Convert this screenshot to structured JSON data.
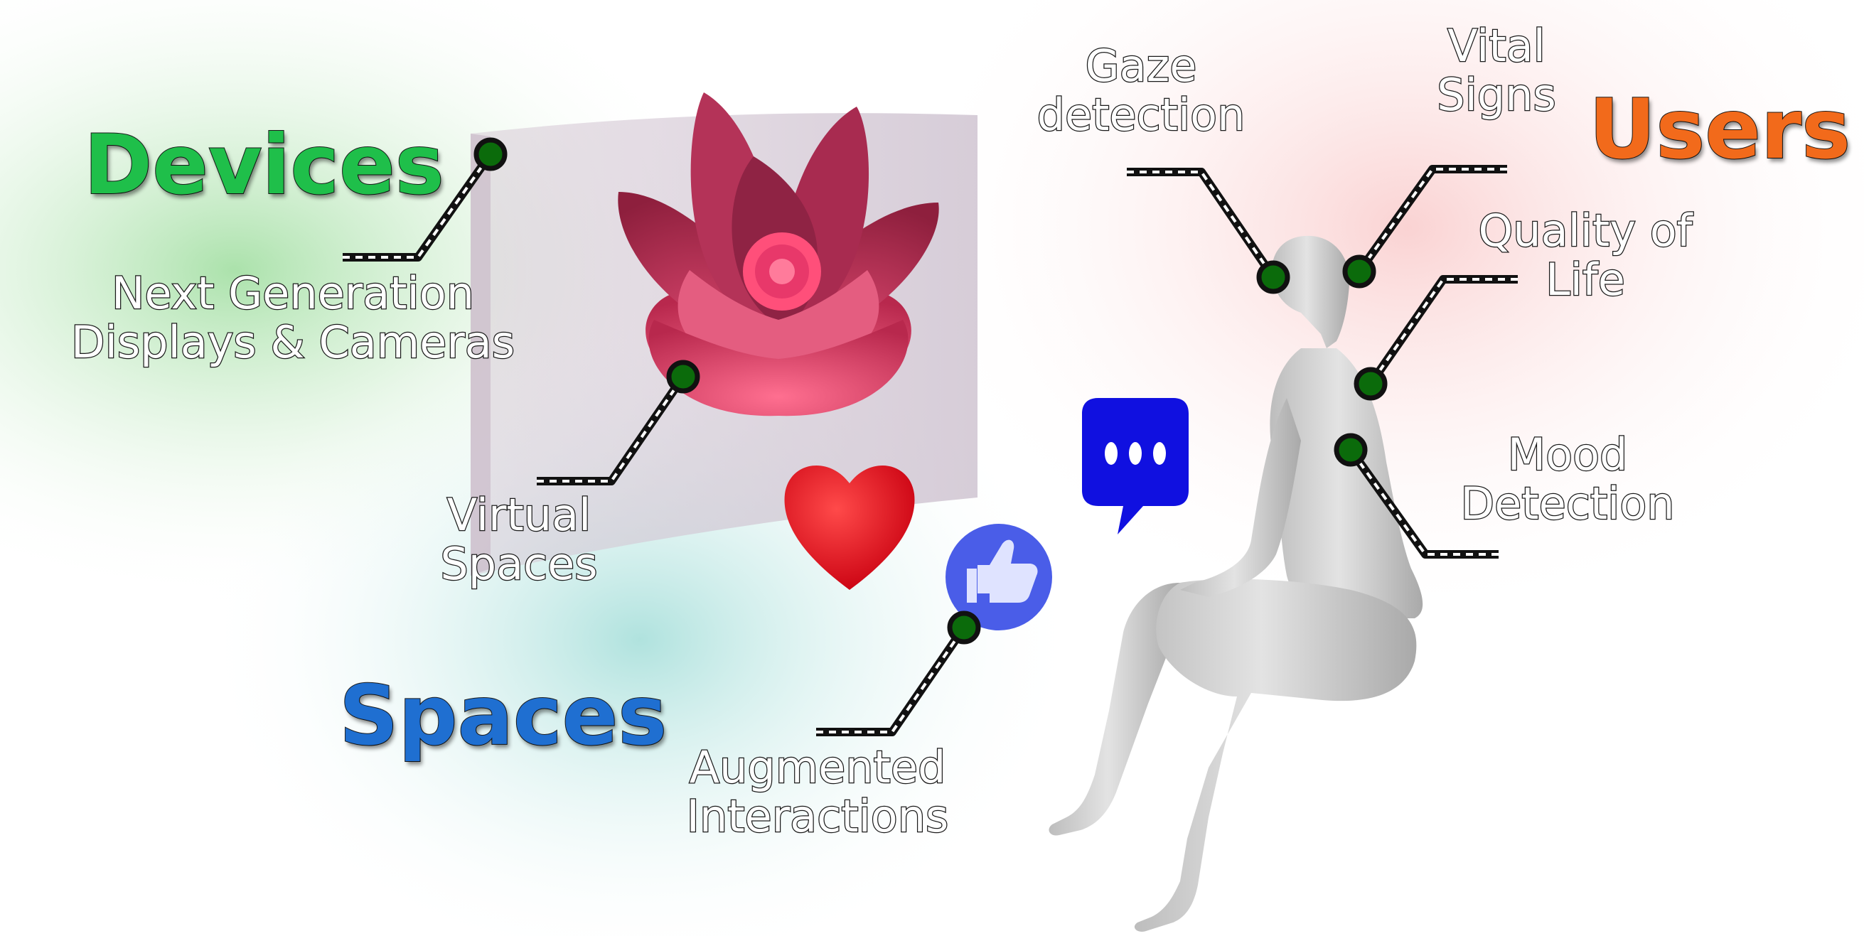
{
  "categories": {
    "devices": {
      "label": "Devices",
      "color": "#1fbf4a"
    },
    "spaces": {
      "label": "Spaces",
      "color": "#1f6fd1"
    },
    "users": {
      "label": "Users",
      "color": "#f26a1b"
    }
  },
  "labels": {
    "displays": {
      "line1": "Next Generation",
      "line2": "Displays & Cameras"
    },
    "virtual": {
      "line1": "Virtual",
      "line2": "Spaces"
    },
    "augmented": {
      "line1": "Augmented",
      "line2": "Interactions"
    },
    "gaze": {
      "line1": "Gaze",
      "line2": "detection"
    },
    "vital": {
      "line1": "Vital",
      "line2": "Signs"
    },
    "quality": {
      "line1": "Quality of",
      "line2": "Life"
    },
    "mood": {
      "line1": "Mood",
      "line2": "Detection"
    }
  },
  "colors": {
    "connector_dot": "#0b6b0b",
    "heart": "#e8111c",
    "chat_bubble": "#1010e0",
    "like_badge": "#4a5de8",
    "flower": "#e0456a"
  }
}
